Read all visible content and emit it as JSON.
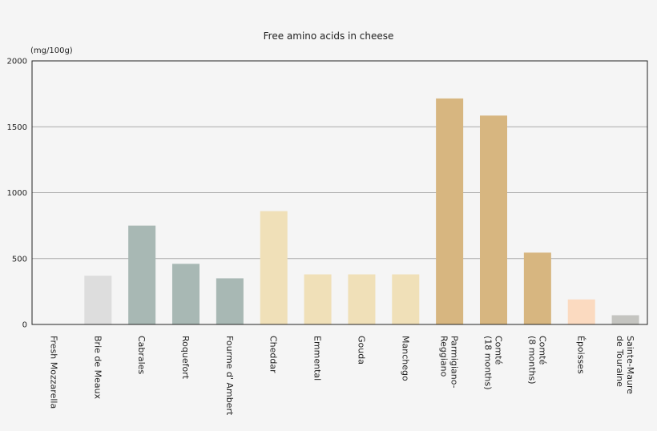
{
  "chart_data": {
    "type": "bar",
    "title": "Free amino acids in cheese",
    "ylabel": "(mg/100g)",
    "xlabel": "",
    "ylim": [
      0,
      2000
    ],
    "yticks": [
      0,
      500,
      1000,
      1500,
      2000
    ],
    "grid": true,
    "legend": "none",
    "categories": [
      [
        "Fresh Mozzarella"
      ],
      [
        "Brie de Meaux"
      ],
      [
        "Cabrales"
      ],
      [
        "Roquefort"
      ],
      [
        "Fourme d' Ambert"
      ],
      [
        "Cheddar"
      ],
      [
        "Emmental"
      ],
      [
        "Gouda"
      ],
      [
        "Manchego"
      ],
      [
        "Parmigiano-",
        "Reggiano"
      ],
      [
        "Comté",
        "(18 months)"
      ],
      [
        "Comté",
        "(8 months)"
      ],
      [
        "Époisses"
      ],
      [
        "Sainte-Maure",
        "de Touraine"
      ]
    ],
    "values": [
      0,
      370,
      750,
      460,
      350,
      860,
      380,
      380,
      380,
      1715,
      1585,
      545,
      190,
      70
    ],
    "colors": [
      "#dddddd",
      "#dddddd",
      "#a8b8b4",
      "#a8b8b4",
      "#a8b8b4",
      "#f0e0b8",
      "#f0e0b8",
      "#f0e0b8",
      "#f0e0b8",
      "#d7b680",
      "#d7b680",
      "#d7b680",
      "#fbdac0",
      "#c4c4c0"
    ]
  }
}
